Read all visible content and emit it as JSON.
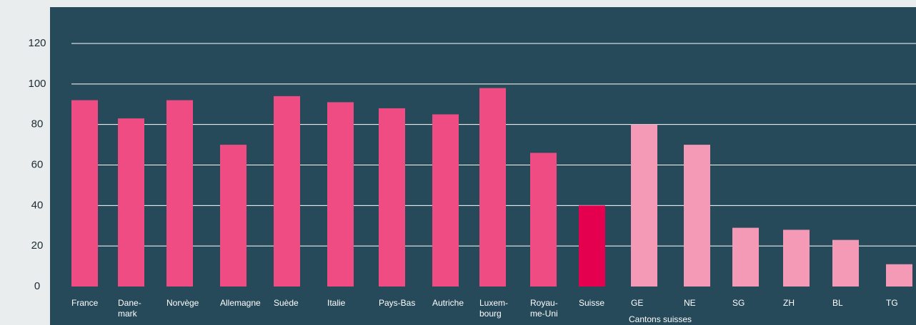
{
  "chart_data": {
    "type": "bar",
    "categories": [
      "France",
      "Dane-\nmark",
      "Norvège",
      "Allemagne",
      "Suède",
      "Italie",
      "Pays-Bas",
      "Autriche",
      "Luxem-\nbourg",
      "Royau-\nme-Uni",
      "Suisse",
      "GE",
      "NE",
      "SG",
      "ZH",
      "BL",
      "TG"
    ],
    "values": [
      92,
      83,
      92,
      70,
      94,
      91,
      88,
      85,
      98,
      66,
      40,
      80,
      70,
      29,
      28,
      23,
      11
    ],
    "colors": [
      "#ee4c82",
      "#ee4c82",
      "#ee4c82",
      "#ee4c82",
      "#ee4c82",
      "#ee4c82",
      "#ee4c82",
      "#ee4c82",
      "#ee4c82",
      "#ee4c82",
      "#e5004f",
      "#f59ab6",
      "#f59ab6",
      "#f59ab6",
      "#f59ab6",
      "#f59ab6",
      "#f59ab6"
    ],
    "annotation": "Cantons suisses",
    "ylim": [
      0,
      120
    ],
    "yticks": [
      0,
      20,
      40,
      60,
      80,
      100,
      120
    ],
    "grid": true
  }
}
